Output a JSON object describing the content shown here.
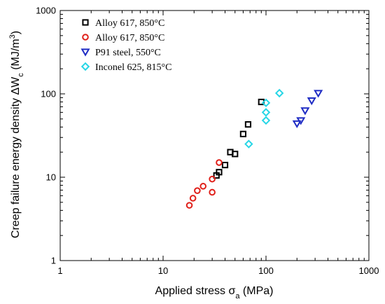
{
  "chart_data": {
    "type": "scatter",
    "xscale": "log",
    "yscale": "log",
    "xlim": [
      1,
      1000
    ],
    "ylim": [
      1,
      1000
    ],
    "xticks": [
      "1",
      "10",
      "100",
      "1000"
    ],
    "yticks": [
      "1",
      "10",
      "100",
      "1000"
    ],
    "xlabel": {
      "main": "Applied stress σ",
      "sub": "a",
      "tail": " (MPa)"
    },
    "ylabel": {
      "main": "Creep failure energy density ΔW",
      "sub": "c",
      "tail": " (MJ/m",
      "sup": "3",
      "end": ")"
    },
    "legend_position": "top-left",
    "series": [
      {
        "name": "Alloy 617, 850°C",
        "marker": "square",
        "color": "#000000",
        "points": [
          [
            33,
            10.5
          ],
          [
            35,
            11.5
          ],
          [
            40,
            14
          ],
          [
            45,
            20
          ],
          [
            50,
            19
          ],
          [
            60,
            33
          ],
          [
            67,
            43
          ],
          [
            90,
            80
          ]
        ]
      },
      {
        "name": "Alloy 617, 850°C",
        "marker": "circle",
        "color": "#e0201a",
        "points": [
          [
            18,
            4.6
          ],
          [
            19.5,
            5.6
          ],
          [
            21.5,
            6.9
          ],
          [
            24.5,
            7.8
          ],
          [
            30,
            6.6
          ],
          [
            30,
            9.5
          ],
          [
            35,
            15
          ]
        ]
      },
      {
        "name": "P91 steel, 550°C",
        "marker": "triangle-down",
        "color": "#1f2cc4",
        "points": [
          [
            200,
            44
          ],
          [
            218,
            48
          ],
          [
            240,
            63
          ],
          [
            278,
            83
          ],
          [
            322,
            102
          ]
        ]
      },
      {
        "name": "Inconel 625, 815°C",
        "marker": "diamond",
        "color": "#27d6e6",
        "points": [
          [
            68,
            25
          ],
          [
            100,
            48
          ],
          [
            100,
            60
          ],
          [
            100,
            78
          ],
          [
            135,
            102
          ]
        ]
      }
    ]
  }
}
